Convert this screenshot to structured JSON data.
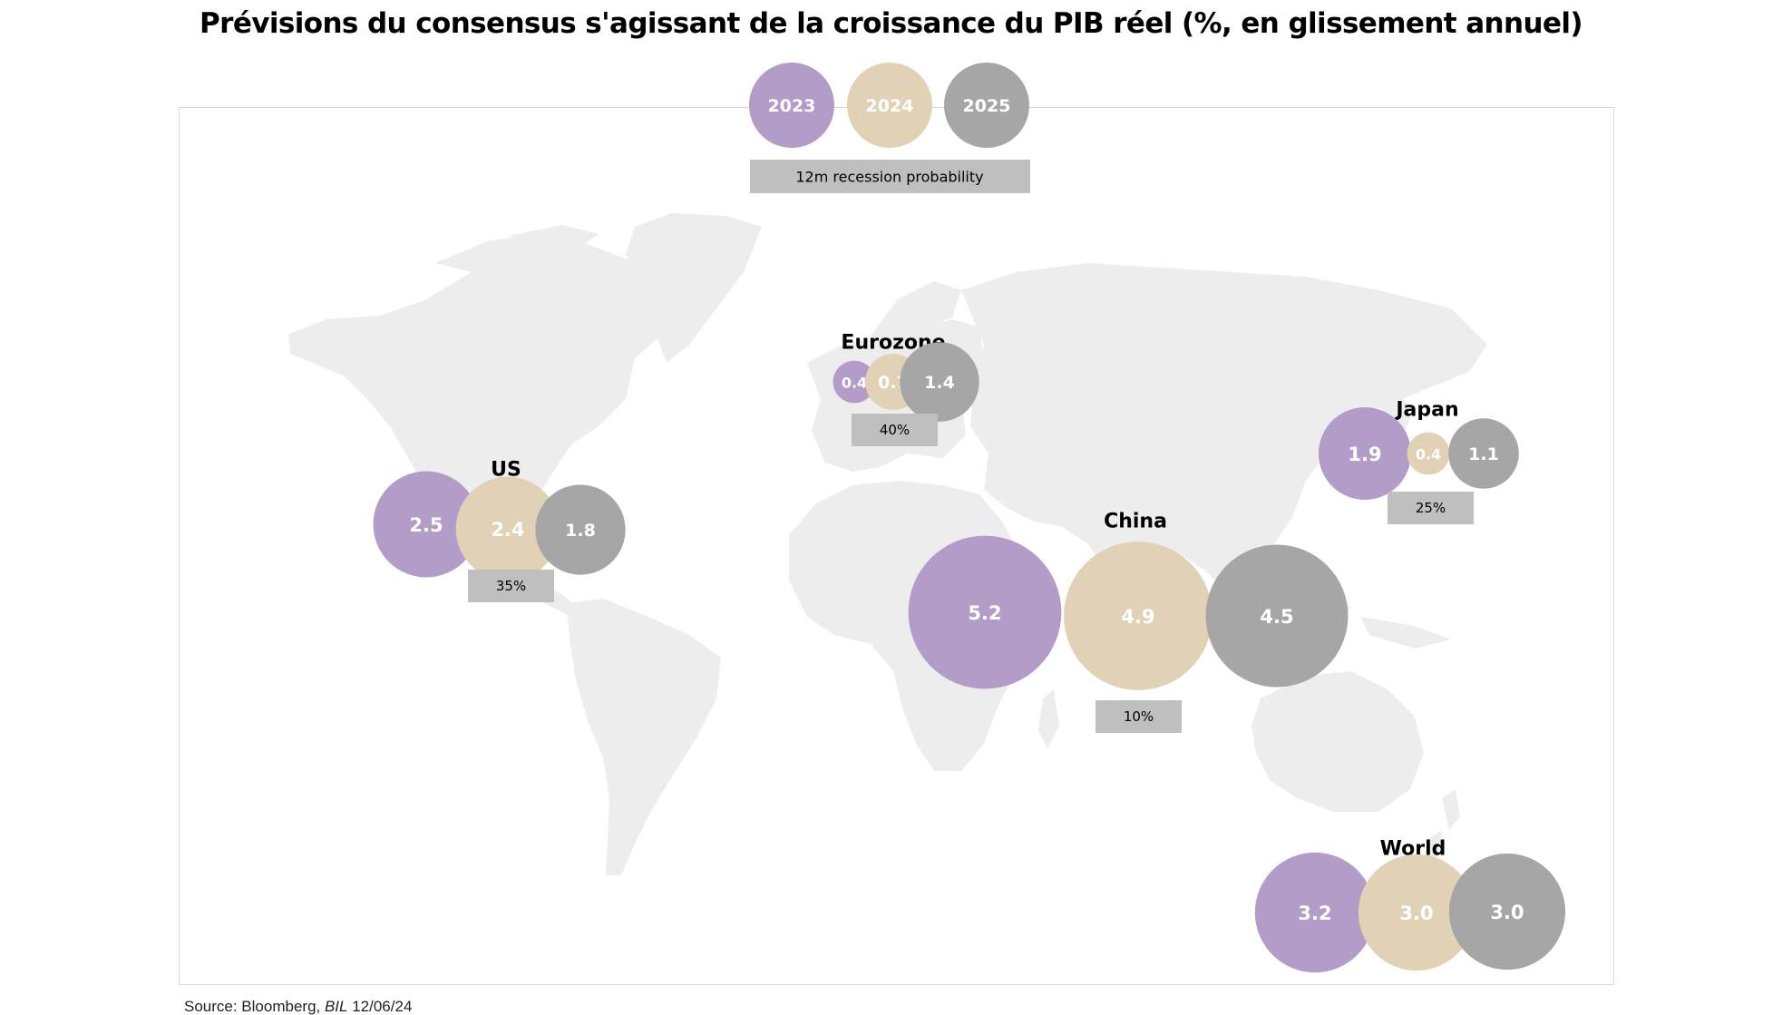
{
  "title": "Prévisions du consensus s'agissant de la croissance du PIB réel (%, en glissement annuel)",
  "legend": {
    "years": [
      "2023",
      "2024",
      "2025"
    ],
    "probability_label": "12m recession probability"
  },
  "colors": {
    "2023": "#b49cc8",
    "2024": "#e1d2b6",
    "2025": "#a6a6a6",
    "probability_box": "#bfbfbf",
    "map": "#ededed"
  },
  "chart_data": {
    "type": "bubble",
    "title": "Prévisions du consensus s'agissant de la croissance du PIB réel (%, en glissement annuel)",
    "series": [
      {
        "name": "2023"
      },
      {
        "name": "2024"
      },
      {
        "name": "2025"
      }
    ],
    "regions": [
      {
        "name": "US",
        "growth": [
          2.5,
          2.4,
          1.8
        ],
        "growth_labels": [
          "2.5",
          "2.4",
          "1.8"
        ],
        "recession_probability": "35%"
      },
      {
        "name": "Eurozone",
        "growth": [
          0.4,
          0.7,
          1.4
        ],
        "growth_labels": [
          "0.4",
          "0.7",
          "1.4"
        ],
        "recession_probability": "40%"
      },
      {
        "name": "Japan",
        "growth": [
          1.9,
          0.4,
          1.1
        ],
        "growth_labels": [
          "1.9",
          "0.4",
          "1.1"
        ],
        "recession_probability": "25%"
      },
      {
        "name": "China",
        "growth": [
          5.2,
          4.9,
          4.5
        ],
        "growth_labels": [
          "5.2",
          "4.9",
          "4.5"
        ],
        "recession_probability": "10%"
      },
      {
        "name": "World",
        "growth": [
          3.2,
          3.0,
          3.0
        ],
        "growth_labels": [
          "3.2",
          "3.0",
          "3.0"
        ],
        "recession_probability": null
      }
    ]
  },
  "source": {
    "prefix": "Source: Bloomberg, ",
    "italic": "BIL",
    "date": "  12/06/24"
  }
}
